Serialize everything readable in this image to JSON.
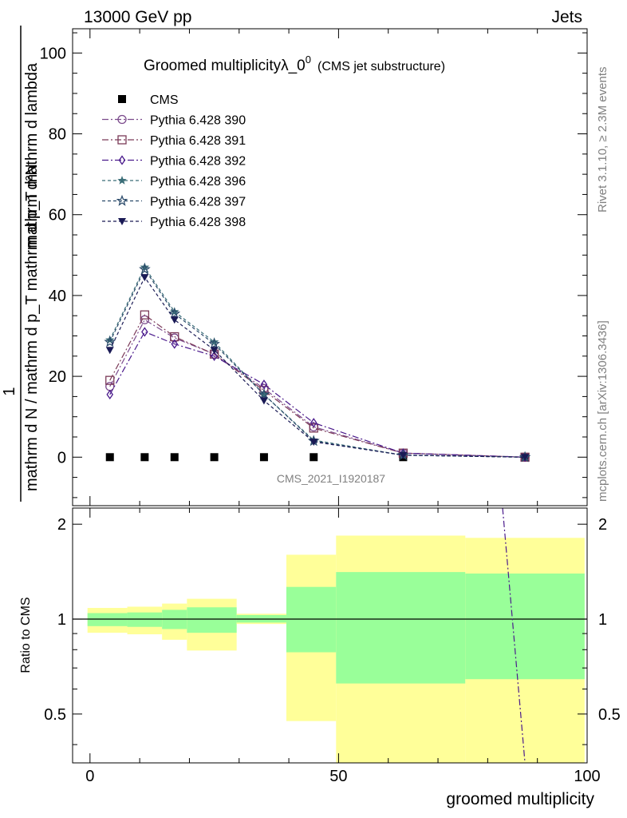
{
  "header": {
    "left": "13000 GeV pp",
    "right": "Jets"
  },
  "side": {
    "rivet": "Rivet 3.1.10, ≥ 2.3M events",
    "mcplots": "mcplots.cern.ch [arXiv:1306.3436]"
  },
  "chart_data": [
    {
      "type": "line",
      "title": "Groomed multiplicityλ_0⁰",
      "title_main": "Groomed multiplicityλ_0",
      "title_sup": "0",
      "title_note": "(CMS jet substructure)",
      "ylabel_numerator": "1",
      "ylabel_denominator": "mathrm d N / mathrm d p_T mathrm d p_T mathrm d lambda",
      "ylabel_top": "mathrm d²N",
      "watermark": "CMS_2021_I1920187",
      "xlim": [
        -3.5,
        100
      ],
      "ylim": [
        -12,
        106
      ],
      "yticks": [
        0,
        20,
        40,
        60,
        80,
        100
      ],
      "ytick_labels": [
        "0",
        "20",
        "40",
        "60",
        "80",
        "100"
      ],
      "grid": false,
      "legend_position": "top-left",
      "x": [
        4,
        11,
        17,
        25,
        35,
        45,
        63,
        87.5
      ],
      "series": [
        {
          "name": "CMS",
          "marker": "square-filled",
          "color": "#000000",
          "values": [
            0,
            0,
            0,
            0,
            0,
            0,
            0,
            0
          ]
        },
        {
          "name": "Pythia 6.428 390",
          "marker": "circle-open",
          "color": "#7b4a8c",
          "dash": "8,3,2,3",
          "values": [
            17.5,
            34,
            29.5,
            25.5,
            17,
            7.5,
            1,
            0
          ]
        },
        {
          "name": "Pythia 6.428 391",
          "marker": "square-open",
          "color": "#7b3a58",
          "dash": "8,3,2,3",
          "values": [
            19,
            35.2,
            29.8,
            25.5,
            16.5,
            7.2,
            1,
            0
          ]
        },
        {
          "name": "Pythia 6.428 392",
          "marker": "diamond-open",
          "color": "#4a1a8c",
          "dash": "8,3,2,3",
          "values": [
            15.5,
            31,
            28,
            25,
            18,
            8.5,
            1,
            0
          ]
        },
        {
          "name": "Pythia 6.428 396",
          "marker": "star-filled",
          "color": "#3b6e78",
          "dash": "4,3",
          "values": [
            29,
            47,
            36,
            28.5,
            15.5,
            4.2,
            0.5,
            0
          ]
        },
        {
          "name": "Pythia 6.428 397",
          "marker": "star-open",
          "color": "#2a4a6a",
          "dash": "4,3",
          "values": [
            28.5,
            46.5,
            35.5,
            28,
            15.5,
            4,
            0.5,
            0
          ]
        },
        {
          "name": "Pythia 6.428 398",
          "marker": "triangle-down-filled",
          "color": "#1a1a55",
          "dash": "4,3",
          "values": [
            26.5,
            44.5,
            34,
            26.5,
            14,
            3.8,
            0.5,
            0
          ]
        }
      ]
    },
    {
      "type": "area",
      "ylabel": "Ratio to CMS",
      "xlabel": "groomed multiplicity",
      "xlim": [
        -3.5,
        100
      ],
      "ylim": [
        0.35,
        2.25
      ],
      "xticks": [
        0,
        50,
        100
      ],
      "xtick_labels": [
        "0",
        "50",
        "100"
      ],
      "yticks": [
        0.5,
        1,
        2
      ],
      "ytick_labels": [
        "0.5",
        "1",
        "2"
      ],
      "reference_line": 1,
      "bins": [
        {
          "x0": -0.5,
          "x1": 7.5,
          "inner": [
            0.95,
            1.045
          ],
          "outer": [
            0.905,
            1.085
          ]
        },
        {
          "x0": 7.5,
          "x1": 14.5,
          "inner": [
            0.945,
            1.05
          ],
          "outer": [
            0.895,
            1.095
          ]
        },
        {
          "x0": 14.5,
          "x1": 19.5,
          "inner": [
            0.93,
            1.07
          ],
          "outer": [
            0.86,
            1.12
          ]
        },
        {
          "x0": 19.5,
          "x1": 29.5,
          "inner": [
            0.905,
            1.09
          ],
          "outer": [
            0.795,
            1.16
          ]
        },
        {
          "x0": 29.5,
          "x1": 39.5,
          "inner": [
            0.975,
            1.03
          ],
          "outer": [
            0.965,
            1.04
          ]
        },
        {
          "x0": 39.5,
          "x1": 49.5,
          "inner": [
            0.785,
            1.265
          ],
          "outer": [
            0.475,
            1.6
          ]
        },
        {
          "x0": 49.5,
          "x1": 75.5,
          "inner": [
            0.625,
            1.41
          ],
          "outer": [
            0.3,
            1.84
          ]
        },
        {
          "x0": 75.5,
          "x1": 99.5,
          "inner": [
            0.645,
            1.395
          ],
          "outer": [
            0.3,
            1.81
          ]
        }
      ],
      "bands": {
        "inner_color": "#99ff99",
        "outer_color": "#ffff99"
      },
      "outlier_line": {
        "color": "#4a1a8c",
        "x": [
          83,
          87.5
        ],
        "y": [
          2.25,
          0.35
        ]
      }
    }
  ]
}
